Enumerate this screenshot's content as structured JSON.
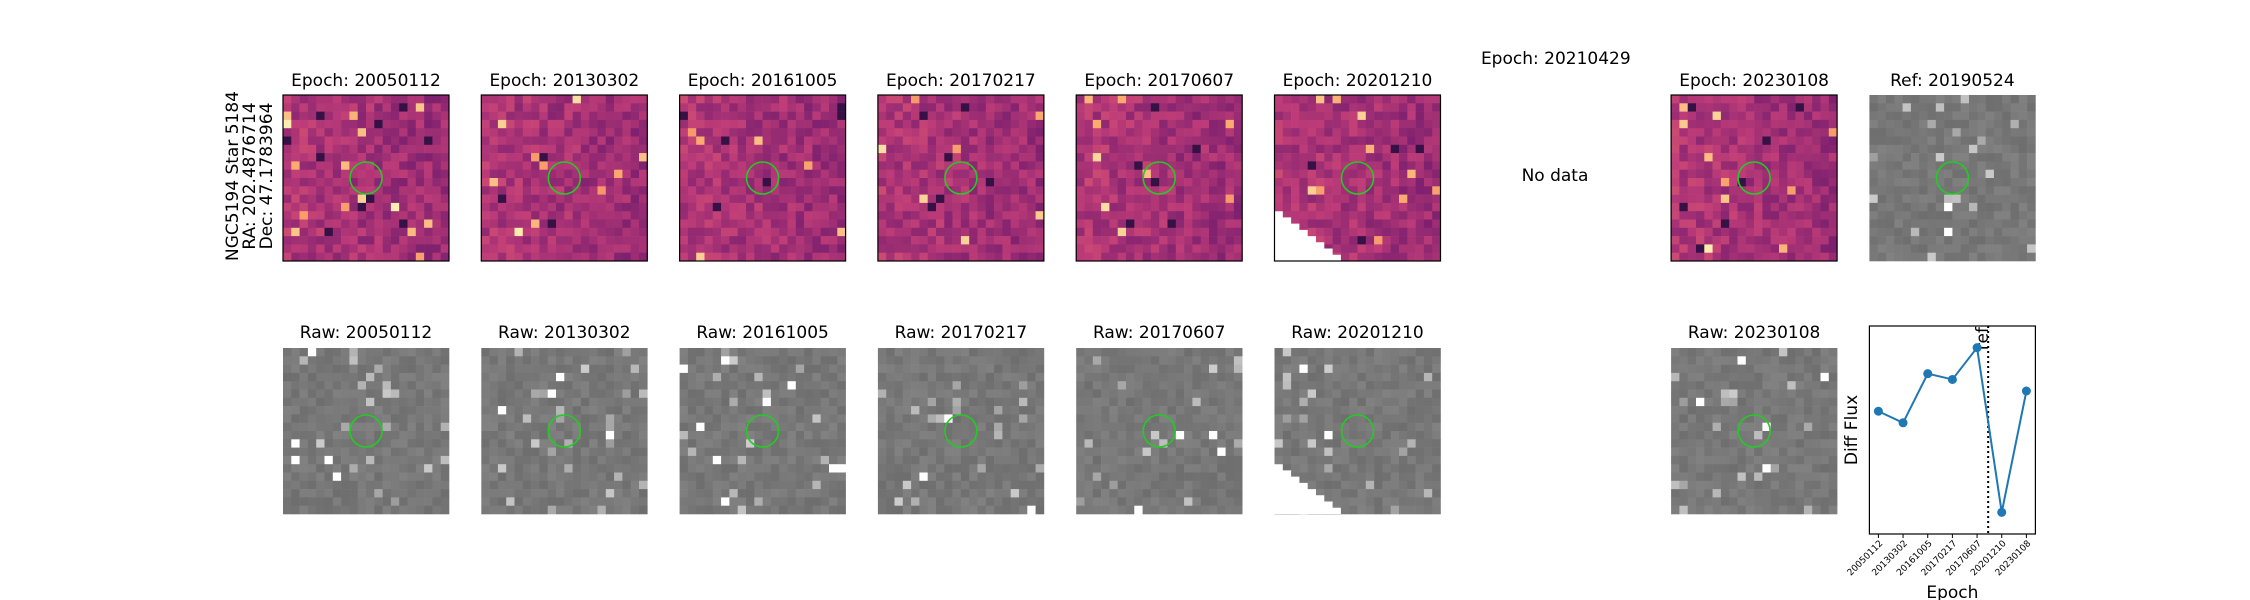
{
  "side_label": [
    "NGC5194 Star 5184",
    "RA: 202.4876714",
    "Dec: 47.1783964"
  ],
  "top_titles": [
    "Epoch: 20050112",
    "Epoch: 20130302",
    "Epoch: 20161005",
    "Epoch: 20170217",
    "Epoch: 20170607",
    "Epoch: 20201210",
    "Epoch: 20210429",
    "Epoch: 20230108",
    "Ref: 20190524"
  ],
  "no_data": "No data",
  "bottom_titles": [
    "Raw: 20050112",
    "Raw: 20130302",
    "Raw: 20161005",
    "Raw: 20170217",
    "Raw: 20170607",
    "Raw: 20201210",
    "Raw: 20230108"
  ],
  "chart_data": {
    "type": "line",
    "xlabel": "Epoch",
    "ylabel": "Diff Flux",
    "categories": [
      "20050112",
      "20130302",
      "20161005",
      "20170217",
      "20170607",
      "20201210",
      "20230108"
    ],
    "values": [
      85,
      77,
      111,
      107,
      129,
      15,
      99
    ],
    "ylim": [
      0,
      144
    ],
    "color": "#1f77b4",
    "annotation": "ref"
  }
}
